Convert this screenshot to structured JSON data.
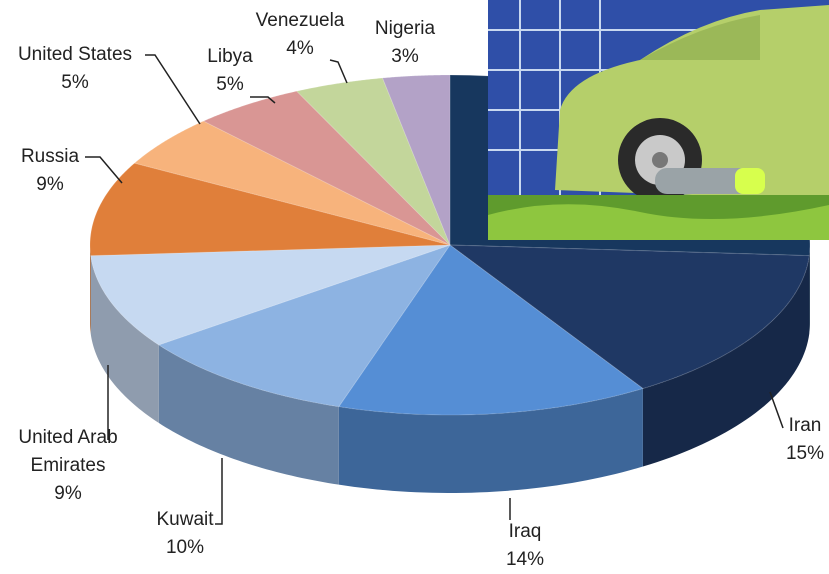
{
  "chart_data": {
    "type": "pie3d",
    "categories": [
      null,
      "Iran",
      "Iraq",
      "Kuwait",
      "United Arab Emirates",
      "Russia",
      "United States",
      "Libya",
      "Venezuela",
      "Nigeria"
    ],
    "values": [
      26,
      15,
      14,
      10,
      9,
      9,
      5,
      5,
      4,
      3
    ],
    "value_labels": [
      null,
      "15%",
      "14%",
      "10%",
      "9%",
      "9%",
      "5%",
      "5%",
      "4%",
      "3%"
    ],
    "colors": [
      "#17375e",
      "#1f3864",
      "#558ed5",
      "#8db3e2",
      "#c6d9f1",
      "#e07f3a",
      "#f7b37c",
      "#d99694",
      "#c3d69b",
      "#b3a2c7"
    ]
  }
}
